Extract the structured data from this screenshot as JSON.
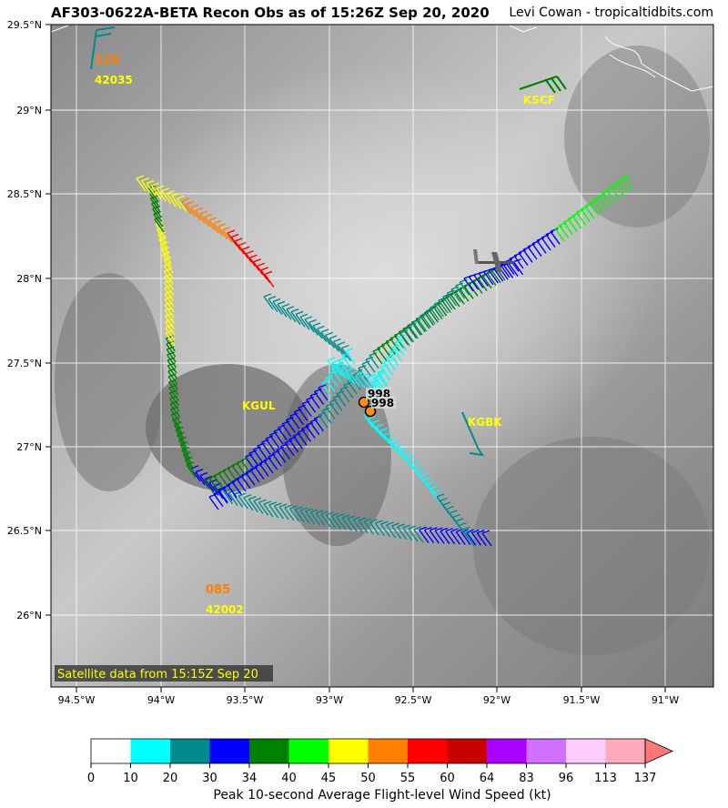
{
  "header": {
    "title": "AF303-0622A-BETA Recon Obs as of 15:26Z Sep 20, 2020",
    "credit": "Levi Cowan - tropicaltidbits.com"
  },
  "map": {
    "satellite_note": "Satellite data from 15:15Z Sep 20",
    "lat_labels": [
      "29.5°N",
      "29°N",
      "28.5°N",
      "28°N",
      "27.5°N",
      "27°N",
      "26.5°N",
      "26°N"
    ],
    "lon_labels": [
      "94.5°W",
      "94°W",
      "93.5°W",
      "93°W",
      "92.5°W",
      "92°W",
      "91.5°W",
      "91°W"
    ],
    "stations": [
      {
        "id": "42035",
        "value": "126",
        "value_color": "#ff7f00",
        "id_color": "#ffff00"
      },
      {
        "id": "KSCF",
        "id_color": "#ffff00"
      },
      {
        "id": "KGUL",
        "id_color": "#ffff00"
      },
      {
        "id": "KGBK",
        "id_color": "#ffff00"
      },
      {
        "id": "42002",
        "value": "085",
        "value_color": "#ff7f00",
        "id_color": "#ffff00"
      }
    ],
    "pressure_obs": [
      "998",
      "998"
    ]
  },
  "colorbar": {
    "title": "Peak 10-second Average Flight-level Wind Speed (kt)",
    "ticks": [
      "0",
      "10",
      "20",
      "30",
      "34",
      "40",
      "45",
      "50",
      "55",
      "60",
      "64",
      "83",
      "96",
      "113",
      "137"
    ],
    "colors": [
      "#ffffff",
      "#00ffff",
      "#008b8b",
      "#0000ff",
      "#008000",
      "#00ff00",
      "#ffff00",
      "#ff7f00",
      "#ff0000",
      "#c80000",
      "#aa00ff",
      "#d070ff",
      "#ffccff",
      "#ffaabb",
      "#ff7777"
    ]
  }
}
